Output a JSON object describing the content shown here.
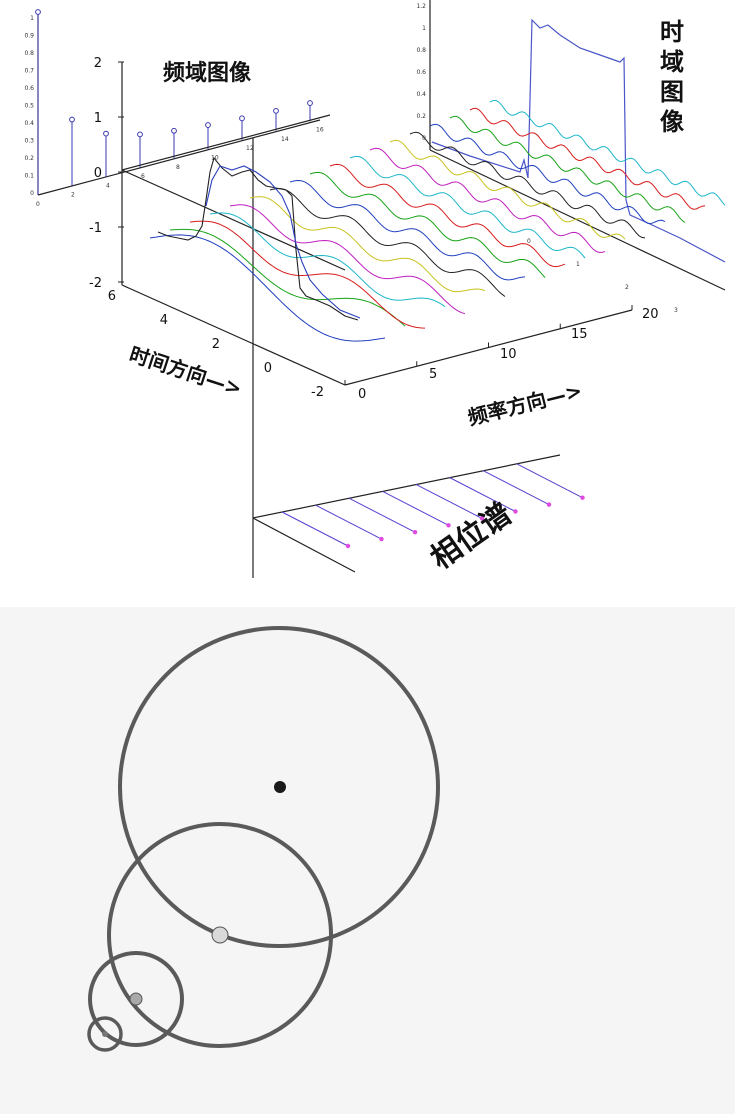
{
  "top_figure": {
    "labels": {
      "freq_image": "频域图像",
      "time_image": "时域图像",
      "time_direction": "时间方向—>",
      "freq_direction": "频率方向—>",
      "phase_spectrum": "相位谱"
    },
    "z_ticks": [
      "2",
      "1",
      "0",
      "-1",
      "-2"
    ],
    "y_ticks": [
      "6",
      "4",
      "2",
      "0",
      "-2"
    ],
    "x_ticks": [
      "0",
      "5",
      "10",
      "15",
      "20"
    ],
    "spectrum_y_ticks": [
      "1",
      "0.9",
      "0.8",
      "0.7",
      "0.6",
      "0.5",
      "0.4",
      "0.3",
      "0.2",
      "0.1",
      "0"
    ],
    "spectrum_x_ticks": [
      "0",
      "2",
      "4",
      "6",
      "8",
      "10",
      "12",
      "14",
      "16"
    ],
    "time_y_ticks": [
      "1.2",
      "1",
      "0.8",
      "0.6",
      "0.4",
      "0.2",
      "0"
    ],
    "time_x_ticks": [
      "0",
      "1",
      "2",
      "3"
    ],
    "colors": {
      "wave_palette": [
        "#1f3fbf",
        "#17a317",
        "#d81b1b",
        "#1fb7c9",
        "#c01fc0",
        "#c9c21f",
        "#222222"
      ],
      "phase_lines": "#5a3fd0",
      "phase_dots": "#e04ae0"
    }
  },
  "bottom_figure": {
    "colors": {
      "circle_stroke": "#5a5a5a",
      "center_dot": "#1a1a1a",
      "joint_dot": "#d9d9d9"
    }
  }
}
